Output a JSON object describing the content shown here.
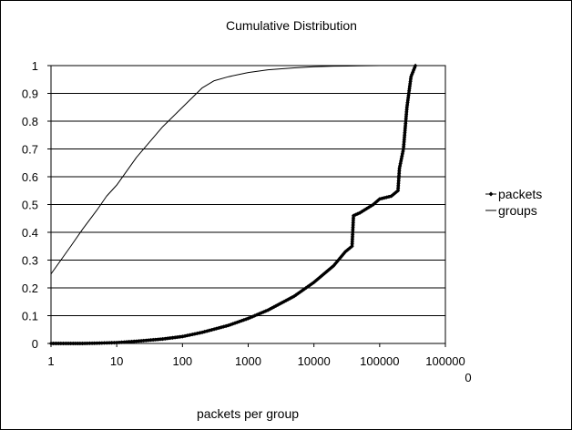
{
  "chart_data": {
    "type": "line",
    "title": "Cumulative Distribution",
    "xlabel": "packets per group",
    "ylabel": "",
    "x_scale": "log",
    "xlim": [
      1,
      1000000
    ],
    "ylim": [
      0,
      1
    ],
    "grid": "horizontal",
    "legend_position": "right",
    "x_ticks": [
      "1",
      "10",
      "100",
      "1000",
      "10000",
      "100000",
      "100000\n0"
    ],
    "y_ticks": [
      "0",
      "0.1",
      "0.2",
      "0.3",
      "0.4",
      "0.5",
      "0.6",
      "0.7",
      "0.8",
      "0.9",
      "1"
    ],
    "series": [
      {
        "name": "packets",
        "marker": "diamond",
        "color": "#000000",
        "x": [
          1,
          2,
          3,
          5,
          10,
          20,
          50,
          100,
          200,
          500,
          1000,
          2000,
          5000,
          10000,
          20000,
          30000,
          38000,
          40000,
          50000,
          80000,
          100000,
          150000,
          190000,
          200000,
          230000,
          260000,
          300000,
          350000
        ],
        "y": [
          0.0,
          0.0,
          0.0,
          0.001,
          0.003,
          0.008,
          0.016,
          0.025,
          0.04,
          0.065,
          0.09,
          0.12,
          0.17,
          0.22,
          0.28,
          0.33,
          0.35,
          0.46,
          0.47,
          0.5,
          0.52,
          0.53,
          0.55,
          0.63,
          0.7,
          0.85,
          0.96,
          1.0
        ]
      },
      {
        "name": "groups",
        "marker": "none",
        "color": "#000000",
        "x": [
          1,
          2,
          3,
          5,
          7,
          10,
          20,
          50,
          100,
          200,
          300,
          500,
          1000,
          2000,
          5000,
          10000,
          20000,
          50000,
          100000,
          300000,
          350000
        ],
        "y": [
          0.25,
          0.35,
          0.41,
          0.48,
          0.53,
          0.57,
          0.67,
          0.78,
          0.85,
          0.92,
          0.945,
          0.96,
          0.975,
          0.985,
          0.992,
          0.996,
          0.998,
          0.999,
          1.0,
          1.0,
          1.0
        ]
      }
    ]
  }
}
